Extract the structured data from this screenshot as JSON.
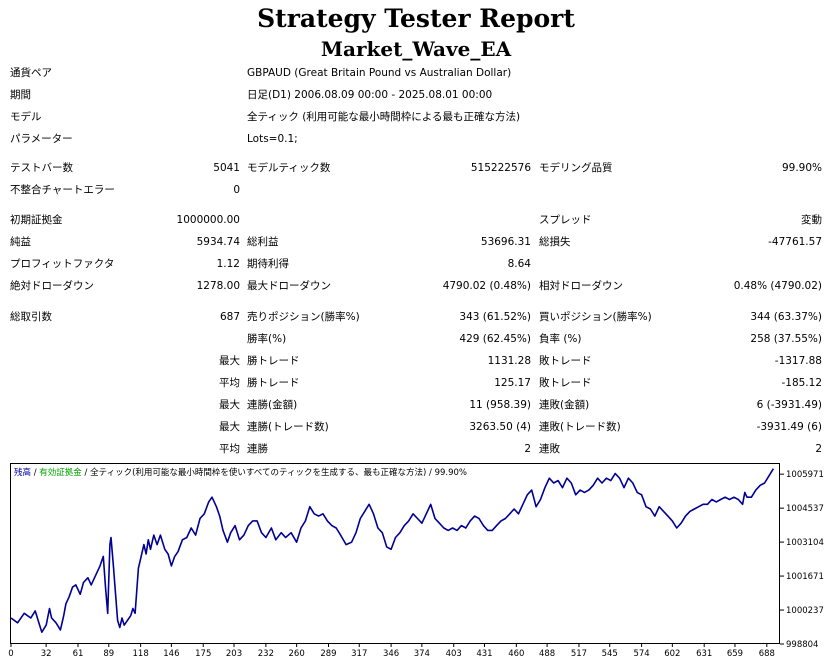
{
  "header": {
    "title": "Strategy Tester Report",
    "ea_name": "Market_Wave_EA"
  },
  "info": {
    "symbol_label": "通貨ペア",
    "symbol_value": "GBPAUD (Great Britain Pound vs Australian Dollar)",
    "period_label": "期間",
    "period_value": "日足(D1) 2006.08.09 00:00 - 2025.08.01 00:00",
    "model_label": "モデル",
    "model_value": "全ティック (利用可能な最小時間枠による最も正確な方法)",
    "params_label": "パラメーター",
    "params_value": "Lots=0.1;"
  },
  "stats": {
    "bars_label": "テストバー数",
    "bars_value": "5041",
    "ticks_label": "モデルティック数",
    "ticks_value": "515222576",
    "quality_label": "モデリング品質",
    "quality_value": "99.90%",
    "mismatch_label": "不整合チャートエラー",
    "mismatch_value": "0",
    "deposit_label": "初期証拠金",
    "deposit_value": "1000000.00",
    "spread_label": "スプレッド",
    "spread_value": "変動",
    "net_label": "純益",
    "net_value": "5934.74",
    "gross_profit_label": "総利益",
    "gross_profit_value": "53696.31",
    "gross_loss_label": "総損失",
    "gross_loss_value": "-47761.57",
    "pf_label": "プロフィットファクタ",
    "pf_value": "1.12",
    "expected_label": "期待利得",
    "expected_value": "8.64",
    "abs_dd_label": "絶対ドローダウン",
    "abs_dd_value": "1278.00",
    "max_dd_label": "最大ドローダウン",
    "max_dd_value": "4790.02 (0.48%)",
    "rel_dd_label": "相対ドローダウン",
    "rel_dd_value": "0.48% (4790.02)",
    "total_trades_label": "総取引数",
    "total_trades_value": "687",
    "short_label": "売りポジション(勝率%)",
    "short_value": "343 (61.52%)",
    "long_label": "買いポジション(勝率%)",
    "long_value": "344 (63.37%)",
    "win_rate_label": "勝率(%)",
    "win_rate_value": "429 (62.45%)",
    "loss_rate_label": "負率 (%)",
    "loss_rate_value": "258 (37.55%)",
    "max1_label": "最大",
    "best_trade_label": "勝トレード",
    "best_trade_value": "1131.28",
    "worst_trade_label": "敗トレード",
    "worst_trade_value": "-1317.88",
    "avg1_label": "平均",
    "avg_win_label": "勝トレード",
    "avg_win_value": "125.17",
    "avg_loss_label": "敗トレード",
    "avg_loss_value": "-185.12",
    "max2_label": "最大",
    "cons_wins_amt_label": "連勝(金額)",
    "cons_wins_amt_value": "11 (958.39)",
    "cons_losses_amt_label": "連敗(金額)",
    "cons_losses_amt_value": "6 (-3931.49)",
    "max3_label": "最大",
    "cons_profit_label": "連勝(トレード数)",
    "cons_profit_value": "3263.50 (4)",
    "cons_loss_label": "連敗(トレード数)",
    "cons_loss_value": "-3931.49 (6)",
    "avg2_label": "平均",
    "avg_cons_wins_label": "連勝",
    "avg_cons_wins_value": "2",
    "avg_cons_losses_label": "連敗",
    "avg_cons_losses_value": "2"
  },
  "chart_legend": {
    "balance": "残高",
    "sep1": " / ",
    "equity": "有効証拠金",
    "sep2": " / ",
    "model": "全ティック(利用可能な最小時間枠を使いすべてのティックを生成する、最も正確な方法)",
    "sep3": " / ",
    "quality": "99.90%",
    "balance_color": "#0000aa",
    "equity_color": "#00a000"
  },
  "chart_data": {
    "type": "line",
    "xlabel": "",
    "ylabel": "",
    "x_ticks": [
      "0",
      "32",
      "61",
      "89",
      "118",
      "146",
      "175",
      "203",
      "232",
      "260",
      "289",
      "317",
      "346",
      "374",
      "403",
      "431",
      "460",
      "488",
      "517",
      "545",
      "574",
      "602",
      "631",
      "659",
      "688"
    ],
    "y_ticks": [
      "998804",
      "1000237",
      "1001671",
      "1003104",
      "1004537",
      "1005971"
    ],
    "ylim": [
      998804,
      1006400
    ],
    "xlim": [
      0,
      700
    ],
    "line_color": "#000096",
    "series": [
      {
        "values": [
          [
            0,
            999900
          ],
          [
            6,
            999700
          ],
          [
            12,
            1000100
          ],
          [
            18,
            999900
          ],
          [
            22,
            1000200
          ],
          [
            26,
            999600
          ],
          [
            28,
            999300
          ],
          [
            32,
            999600
          ],
          [
            35,
            1000300
          ],
          [
            37,
            999900
          ],
          [
            41,
            999700
          ],
          [
            45,
            999400
          ],
          [
            48,
            1000000
          ],
          [
            50,
            1000500
          ],
          [
            53,
            1000800
          ],
          [
            56,
            1001200
          ],
          [
            59,
            1001300
          ],
          [
            63,
            1000900
          ],
          [
            66,
            1001400
          ],
          [
            70,
            1001600
          ],
          [
            73,
            1001300
          ],
          [
            77,
            1001700
          ],
          [
            81,
            1002100
          ],
          [
            84,
            1002500
          ],
          [
            86,
            1001200
          ],
          [
            88,
            1000100
          ],
          [
            90,
            1003000
          ],
          [
            91,
            1003300
          ],
          [
            93,
            1002200
          ],
          [
            95,
            1001000
          ],
          [
            97,
            999800
          ],
          [
            99,
            999500
          ],
          [
            101,
            999900
          ],
          [
            103,
            999600
          ],
          [
            106,
            999800
          ],
          [
            109,
            1000000
          ],
          [
            111,
            1000300
          ],
          [
            113,
            1000100
          ],
          [
            116,
            1002000
          ],
          [
            118,
            1002400
          ],
          [
            121,
            1003000
          ],
          [
            123,
            1002600
          ],
          [
            125,
            1003200
          ],
          [
            127,
            1002800
          ],
          [
            130,
            1003400
          ],
          [
            133,
            1003000
          ],
          [
            136,
            1003400
          ],
          [
            140,
            1002800
          ],
          [
            143,
            1002600
          ],
          [
            146,
            1002100
          ],
          [
            149,
            1002500
          ],
          [
            152,
            1002700
          ],
          [
            156,
            1003200
          ],
          [
            160,
            1003300
          ],
          [
            164,
            1003700
          ],
          [
            168,
            1003400
          ],
          [
            172,
            1004100
          ],
          [
            176,
            1004300
          ],
          [
            180,
            1004800
          ],
          [
            183,
            1005000
          ],
          [
            187,
            1004600
          ],
          [
            190,
            1004200
          ],
          [
            193,
            1003600
          ],
          [
            197,
            1003100
          ],
          [
            200,
            1003500
          ],
          [
            204,
            1003800
          ],
          [
            208,
            1003200
          ],
          [
            212,
            1003400
          ],
          [
            216,
            1003800
          ],
          [
            220,
            1004000
          ],
          [
            224,
            1004000
          ],
          [
            228,
            1003500
          ],
          [
            232,
            1003300
          ],
          [
            237,
            1003700
          ],
          [
            241,
            1003200
          ],
          [
            246,
            1003500
          ],
          [
            250,
            1003300
          ],
          [
            255,
            1003500
          ],
          [
            260,
            1003100
          ],
          [
            264,
            1003700
          ],
          [
            268,
            1004000
          ],
          [
            272,
            1004600
          ],
          [
            276,
            1004300
          ],
          [
            280,
            1004200
          ],
          [
            284,
            1004300
          ],
          [
            288,
            1004000
          ],
          [
            292,
            1003800
          ],
          [
            296,
            1003700
          ],
          [
            300,
            1003400
          ],
          [
            305,
            1003000
          ],
          [
            310,
            1003100
          ],
          [
            314,
            1003500
          ],
          [
            318,
            1004100
          ],
          [
            322,
            1004400
          ],
          [
            326,
            1004700
          ],
          [
            330,
            1004300
          ],
          [
            334,
            1003700
          ],
          [
            338,
            1003500
          ],
          [
            342,
            1002900
          ],
          [
            346,
            1002800
          ],
          [
            350,
            1003300
          ],
          [
            354,
            1003500
          ],
          [
            358,
            1003800
          ],
          [
            362,
            1004000
          ],
          [
            366,
            1004300
          ],
          [
            370,
            1004100
          ],
          [
            374,
            1003900
          ],
          [
            378,
            1004300
          ],
          [
            382,
            1004700
          ],
          [
            386,
            1004100
          ],
          [
            390,
            1003900
          ],
          [
            394,
            1003700
          ],
          [
            398,
            1003600
          ],
          [
            402,
            1003700
          ],
          [
            406,
            1003600
          ],
          [
            410,
            1003800
          ],
          [
            414,
            1003700
          ],
          [
            418,
            1004000
          ],
          [
            422,
            1004200
          ],
          [
            426,
            1004100
          ],
          [
            430,
            1003800
          ],
          [
            434,
            1003600
          ],
          [
            438,
            1003600
          ],
          [
            442,
            1003800
          ],
          [
            446,
            1004000
          ],
          [
            450,
            1004100
          ],
          [
            454,
            1004300
          ],
          [
            458,
            1004500
          ],
          [
            462,
            1004300
          ],
          [
            466,
            1004700
          ],
          [
            470,
            1005100
          ],
          [
            474,
            1005300
          ],
          [
            478,
            1004600
          ],
          [
            482,
            1004900
          ],
          [
            486,
            1005400
          ],
          [
            490,
            1005800
          ],
          [
            494,
            1005600
          ],
          [
            498,
            1005700
          ],
          [
            502,
            1005400
          ],
          [
            506,
            1005800
          ],
          [
            510,
            1005600
          ],
          [
            514,
            1005100
          ],
          [
            518,
            1005300
          ],
          [
            522,
            1005200
          ],
          [
            526,
            1005300
          ],
          [
            530,
            1005500
          ],
          [
            534,
            1005800
          ],
          [
            538,
            1005600
          ],
          [
            542,
            1005800
          ],
          [
            546,
            1005700
          ],
          [
            550,
            1006000
          ],
          [
            554,
            1005800
          ],
          [
            558,
            1005400
          ],
          [
            562,
            1005800
          ],
          [
            566,
            1005600
          ],
          [
            570,
            1005200
          ],
          [
            574,
            1005100
          ],
          [
            578,
            1004600
          ],
          [
            582,
            1004500
          ],
          [
            586,
            1004200
          ],
          [
            590,
            1004600
          ],
          [
            594,
            1004400
          ],
          [
            598,
            1004200
          ],
          [
            602,
            1004000
          ],
          [
            606,
            1003700
          ],
          [
            610,
            1003900
          ],
          [
            614,
            1004200
          ],
          [
            618,
            1004400
          ],
          [
            622,
            1004500
          ],
          [
            626,
            1004600
          ],
          [
            630,
            1004700
          ],
          [
            634,
            1004700
          ],
          [
            638,
            1004900
          ],
          [
            642,
            1004800
          ],
          [
            646,
            1004900
          ],
          [
            650,
            1005000
          ],
          [
            654,
            1004900
          ],
          [
            658,
            1005000
          ],
          [
            662,
            1004900
          ],
          [
            666,
            1004700
          ],
          [
            668,
            1005200
          ],
          [
            670,
            1005000
          ],
          [
            674,
            1005000
          ],
          [
            678,
            1005300
          ],
          [
            682,
            1005500
          ],
          [
            686,
            1005600
          ],
          [
            690,
            1005900
          ],
          [
            694,
            1006200
          ]
        ]
      }
    ]
  }
}
